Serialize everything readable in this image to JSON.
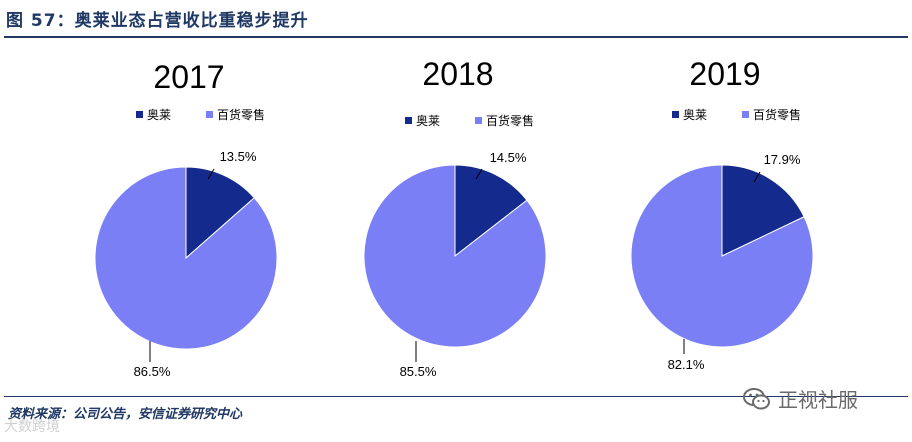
{
  "figure": {
    "title": "图 57：奥莱业态占营收比重稳步提升",
    "source": "资料来源：公司公告，安信证券研究中心"
  },
  "watermarks": {
    "left_text": "大数跨境",
    "right_text": "正视社服",
    "right_icon": "wechat-icon"
  },
  "colors": {
    "outlet": "#142a8c",
    "department_store": "#7b7ff5",
    "title": "#1f3864"
  },
  "chart_data": [
    {
      "type": "pie",
      "title": "2017",
      "legend": [
        "奥莱",
        "百货零售"
      ],
      "legend_position": "top",
      "slices": [
        {
          "label": "奥莱",
          "value": 13.5,
          "display": "13.5%"
        },
        {
          "label": "百货零售",
          "value": 86.5,
          "display": "86.5%"
        }
      ]
    },
    {
      "type": "pie",
      "title": "2018",
      "legend": [
        "奥莱",
        "百货零售"
      ],
      "legend_position": "top",
      "slices": [
        {
          "label": "奥莱",
          "value": 14.5,
          "display": "14.5%"
        },
        {
          "label": "百货零售",
          "value": 85.5,
          "display": "85.5%"
        }
      ]
    },
    {
      "type": "pie",
      "title": "2019",
      "legend": [
        "奥莱",
        "百货零售"
      ],
      "legend_position": "top",
      "slices": [
        {
          "label": "奥莱",
          "value": 17.9,
          "display": "17.9%"
        },
        {
          "label": "百货零售",
          "value": 82.1,
          "display": "82.1%"
        }
      ]
    }
  ]
}
